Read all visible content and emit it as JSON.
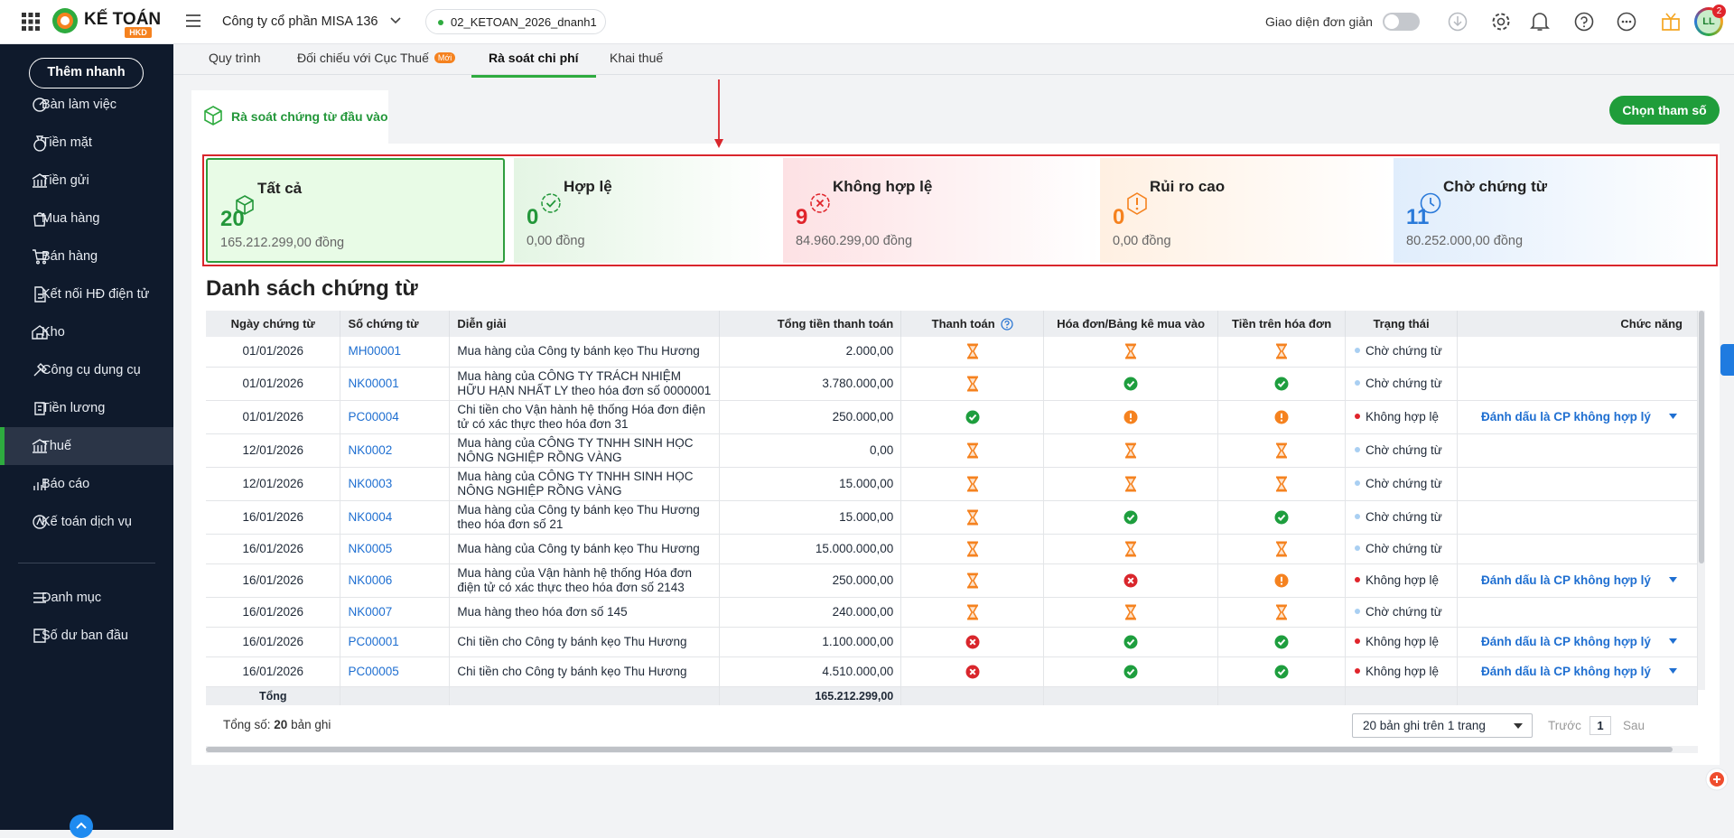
{
  "header": {
    "logo": "KẾ TOÁN",
    "logo_badge": "HKD",
    "company": "Công ty cổ phần MISA 136",
    "database": "02_KETOAN_2026_dnanh1",
    "simple_mode": "Giao diện đơn giản",
    "notification_count": "2",
    "avatar": "LL"
  },
  "sidebar": {
    "quick_add": "Thêm nhanh",
    "items": [
      {
        "label": "Bàn làm việc"
      },
      {
        "label": "Tiền mặt"
      },
      {
        "label": "Tiền gửi"
      },
      {
        "label": "Mua hàng"
      },
      {
        "label": "Bán hàng"
      },
      {
        "label": "Kết nối HĐ điện tử"
      },
      {
        "label": "Kho"
      },
      {
        "label": "Công cụ dụng cụ"
      },
      {
        "label": "Tiền lương"
      },
      {
        "label": "Thuế",
        "active": true
      },
      {
        "label": "Báo cáo"
      },
      {
        "label": "Kế toán dịch vụ"
      },
      {
        "label": "Danh mục"
      },
      {
        "label": "Số dư ban đầu"
      }
    ]
  },
  "tabs": [
    {
      "label": "Quy trình"
    },
    {
      "label": "Đối chiếu với Cục Thuế",
      "badge": "Mới"
    },
    {
      "label": "Rà soát chi phí",
      "active": true
    },
    {
      "label": "Khai thuế"
    }
  ],
  "subtab": "Rà soát chứng từ đầu vào",
  "action_button": "Chọn tham số",
  "summary_cards": [
    {
      "title": "Tất cả",
      "count": 20,
      "amount": "165.212.299,00 đồng"
    },
    {
      "title": "Hợp lệ",
      "count": 0,
      "amount": "0,00 đồng"
    },
    {
      "title": "Không hợp lệ",
      "count": 9,
      "amount": "84.960.299,00 đồng"
    },
    {
      "title": "Rủi ro cao",
      "count": 0,
      "amount": "0,00 đồng"
    },
    {
      "title": "Chờ chứng từ",
      "count": 11,
      "amount": "80.252.000,00 đồng"
    }
  ],
  "list_title": "Danh sách chứng từ",
  "table": {
    "columns": [
      "Ngày chứng từ",
      "Số chứng từ",
      "Diễn giải",
      "Tổng tiền thanh toán",
      "Thanh toán",
      "Hóa đơn/Bảng kê mua vào",
      "Tiền trên hóa đơn",
      "Trạng thái",
      "Chức năng"
    ],
    "rows": [
      {
        "date": "01/01/2026",
        "number": "MH00001",
        "description": "Mua hàng của Công ty bánh kẹo Thu Hương",
        "total": "2.000,00",
        "payment": "hourglass",
        "invoice": "hourglass",
        "invoice_amount": "hourglass",
        "status": {
          "label": "Chờ chứng từ",
          "color": "#a9cff2"
        }
      },
      {
        "date": "01/01/2026",
        "number": "NK00001",
        "description": "Mua hàng của CÔNG TY TRÁCH NHIỆM HỮU HẠN NHẤT LY theo hóa đơn số 0000001",
        "total": "3.780.000,00",
        "payment": "hourglass",
        "invoice": "check",
        "invoice_amount": "check",
        "status": {
          "label": "Chờ chứng từ",
          "color": "#a9cff2"
        }
      },
      {
        "date": "01/01/2026",
        "number": "PC00004",
        "description": "Chi tiền cho Vận hành hệ thống Hóa đơn điện tử có xác thực theo hóa đơn 31",
        "total": "250.000,00",
        "payment": "check",
        "invoice": "alert",
        "invoice_amount": "alert",
        "status": {
          "label": "Không hợp lệ",
          "color": "#e0242b"
        },
        "action": "Đánh dấu là CP không hợp lý"
      },
      {
        "date": "12/01/2026",
        "number": "NK0002",
        "description": "Mua hàng của CÔNG TY TNHH SINH HỌC NÔNG NGHIỆP RỒNG VÀNG",
        "total": "0,00",
        "payment": "hourglass",
        "invoice": "hourglass",
        "invoice_amount": "hourglass",
        "status": {
          "label": "Chờ chứng từ",
          "color": "#a9cff2"
        }
      },
      {
        "date": "12/01/2026",
        "number": "NK0003",
        "description": "Mua hàng của CÔNG TY TNHH SINH HỌC NÔNG NGHIỆP RỒNG VÀNG",
        "total": "15.000,00",
        "payment": "hourglass",
        "invoice": "hourglass",
        "invoice_amount": "hourglass",
        "status": {
          "label": "Chờ chứng từ",
          "color": "#a9cff2"
        }
      },
      {
        "date": "16/01/2026",
        "number": "NK0004",
        "description": "Mua hàng của Công ty bánh kẹo Thu Hương theo hóa đơn số 21",
        "total": "15.000,00",
        "payment": "hourglass",
        "invoice": "check",
        "invoice_amount": "check",
        "status": {
          "label": "Chờ chứng từ",
          "color": "#a9cff2"
        }
      },
      {
        "date": "16/01/2026",
        "number": "NK0005",
        "description": "Mua hàng của Công ty bánh kẹo Thu Hương",
        "total": "15.000.000,00",
        "payment": "hourglass",
        "invoice": "hourglass",
        "invoice_amount": "hourglass",
        "status": {
          "label": "Chờ chứng từ",
          "color": "#a9cff2"
        }
      },
      {
        "date": "16/01/2026",
        "number": "NK0006",
        "description": "Mua hàng của Vận hành hệ thống Hóa đơn điện tử có xác thực theo hóa đơn số 2143",
        "total": "250.000,00",
        "payment": "hourglass",
        "invoice": "cross",
        "invoice_amount": "alert",
        "status": {
          "label": "Không hợp lệ",
          "color": "#e0242b"
        },
        "action": "Đánh dấu là CP không hợp lý"
      },
      {
        "date": "16/01/2026",
        "number": "NK0007",
        "description": "Mua hàng theo hóa đơn số 145",
        "total": "240.000,00",
        "payment": "hourglass",
        "invoice": "hourglass",
        "invoice_amount": "hourglass",
        "status": {
          "label": "Chờ chứng từ",
          "color": "#a9cff2"
        }
      },
      {
        "date": "16/01/2026",
        "number": "PC00001",
        "description": "Chi tiền cho Công ty bánh kẹo Thu Hương",
        "total": "1.100.000,00",
        "payment": "cross",
        "invoice": "check",
        "invoice_amount": "check",
        "status": {
          "label": "Không hợp lệ",
          "color": "#e0242b"
        },
        "action": "Đánh dấu là CP không hợp lý"
      },
      {
        "date": "16/01/2026",
        "number": "PC00005",
        "description": "Chi tiền cho Công ty bánh kẹo Thu Hương",
        "total": "4.510.000,00",
        "payment": "cross",
        "invoice": "check",
        "invoice_amount": "check",
        "status": {
          "label": "Không hợp lệ",
          "color": "#e0242b"
        },
        "action": "Đánh dấu là CP không hợp lý"
      }
    ],
    "total_label": "Tổng",
    "total": "165.212.299,00"
  },
  "footer": {
    "record_prefix": "Tổng số:",
    "record_count": 20,
    "record_suffix": "bản ghi",
    "page_size": "20 bản ghi trên 1 trang",
    "prev": "Trước",
    "page": 1,
    "next": "Sau"
  }
}
